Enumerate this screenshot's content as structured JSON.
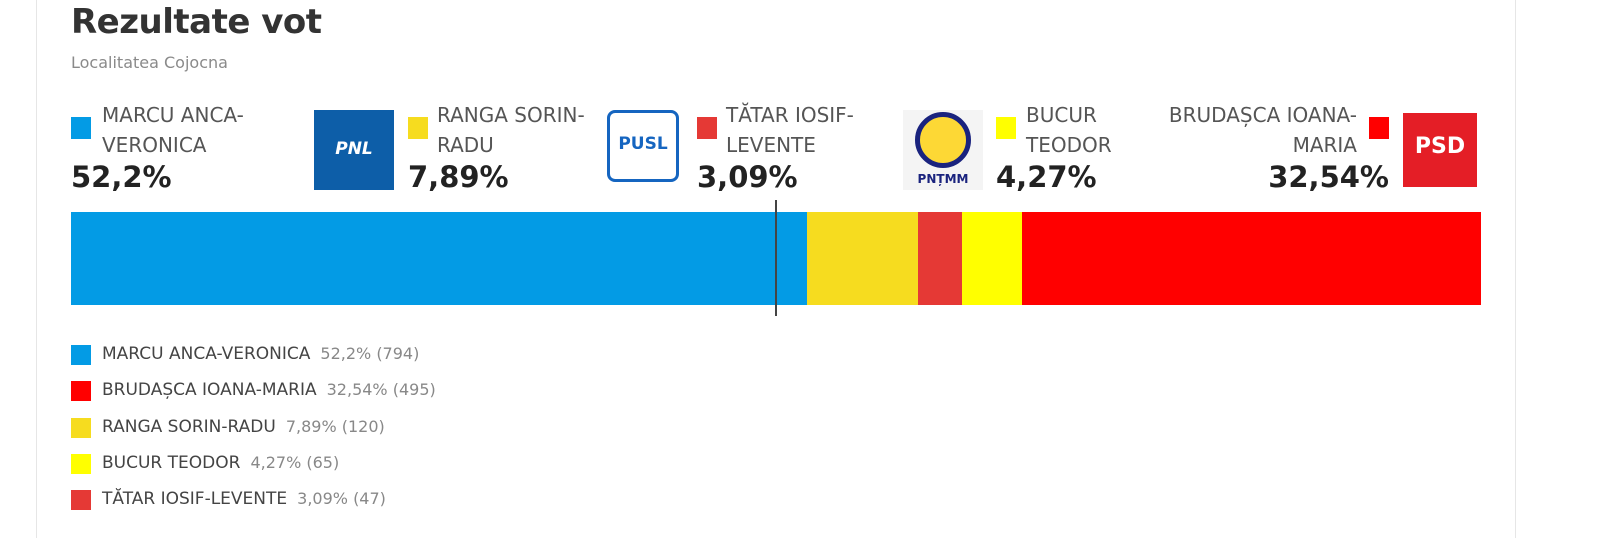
{
  "chart_data": {
    "type": "stacked_bar",
    "title": "Rezultate vot",
    "subtitle": "Localitatea Cojocna",
    "xlim": [
      0,
      100
    ],
    "threshold": 50,
    "series": [
      {
        "name": "MARCU ANCA-VERONICA",
        "color": "#039be5",
        "values": [
          52.2
        ],
        "value_labels": [
          "52,2%"
        ],
        "counts": [
          794
        ],
        "count_labels": [
          "(794)"
        ]
      },
      {
        "name": "RANGA SORIN-RADU",
        "color": "#f6dc1f",
        "values": [
          7.89
        ],
        "value_labels": [
          "7,89%"
        ],
        "counts": [
          120
        ],
        "count_labels": [
          "(120)"
        ],
        "party": "PNL"
      },
      {
        "name": "TĂTAR IOSIF-LEVENTE",
        "color": "#e53935",
        "values": [
          3.09
        ],
        "value_labels": [
          "3,09%"
        ],
        "counts": [
          47
        ],
        "count_labels": [
          "(47)"
        ],
        "party": "PUSL"
      },
      {
        "name": "BUCUR TEODOR",
        "color": "#ffff00",
        "values": [
          4.27
        ],
        "value_labels": [
          "4,27%"
        ],
        "counts": [
          65
        ],
        "count_labels": [
          "(65)"
        ],
        "party": "PNȚMM"
      },
      {
        "name": "BRUDAȘCA IOANA-MARIA",
        "color": "#ff0000",
        "values": [
          32.54
        ],
        "value_labels": [
          "32,54%"
        ],
        "counts": [
          495
        ],
        "count_labels": [
          "(495)"
        ],
        "party": "PSD"
      }
    ]
  }
}
